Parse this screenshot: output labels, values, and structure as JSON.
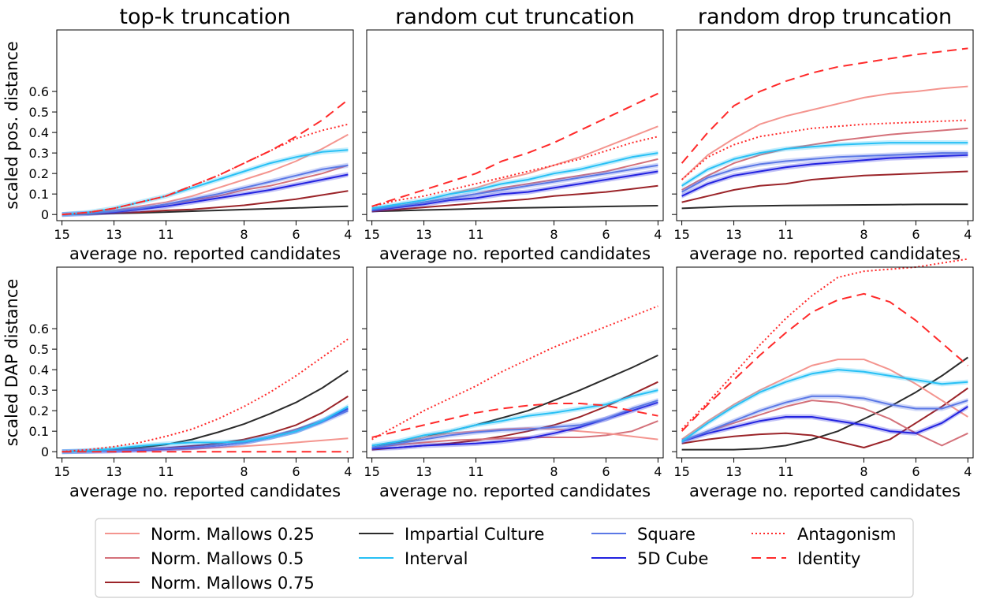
{
  "chart_data": {
    "type": "line",
    "x_ticks": [
      15,
      13,
      11,
      8,
      6,
      4
    ],
    "y_ticks": [
      0,
      0.1,
      0.2,
      0.3,
      0.4,
      0.5,
      0.6
    ],
    "x_range": [
      15.2,
      3.8
    ],
    "xlabel": "average no. reported candidates",
    "series_styles": [
      {
        "key": "m025",
        "name": "Norm. Mallows 0.25",
        "color": "#f4958f",
        "dash": "",
        "band": false
      },
      {
        "key": "m05",
        "name": "Norm. Mallows 0.5",
        "color": "#d4717a",
        "dash": "",
        "band": false
      },
      {
        "key": "m075",
        "name": "Norm. Mallows 0.75",
        "color": "#9b2429",
        "dash": "",
        "band": false
      },
      {
        "key": "ic",
        "name": "Impartial Culture",
        "color": "#2b2b2b",
        "dash": "",
        "band": false
      },
      {
        "key": "int",
        "name": "Interval",
        "color": "#27c0f5",
        "dash": "",
        "band": true
      },
      {
        "key": "sq",
        "name": "Square",
        "color": "#5b78e6",
        "dash": "",
        "band": true
      },
      {
        "key": "cube",
        "name": "5D Cube",
        "color": "#2222e0",
        "dash": "",
        "band": true
      },
      {
        "key": "ant",
        "name": "Antagonism",
        "color": "#ff2a2a",
        "dash": "2,3",
        "band": false
      },
      {
        "key": "id",
        "name": "Identity",
        "color": "#ff2a2a",
        "dash": "12,7",
        "band": false
      }
    ],
    "legend_order": [
      "m025",
      "m05",
      "m075",
      "ic",
      "int",
      "sq",
      "cube",
      "ant",
      "id"
    ],
    "panels": [
      {
        "title": "top-k truncation",
        "ylabel": "scaled pos. distance",
        "ylim": [
          -0.03,
          0.9
        ],
        "x": [
          15,
          14,
          13,
          12,
          11,
          10,
          9,
          8,
          7,
          6,
          5,
          4
        ],
        "series": {
          "m025": [
            0,
            0.005,
            0.02,
            0.04,
            0.06,
            0.09,
            0.13,
            0.17,
            0.21,
            0.26,
            0.32,
            0.39
          ],
          "m05": [
            0,
            0.005,
            0.015,
            0.03,
            0.05,
            0.07,
            0.09,
            0.12,
            0.14,
            0.17,
            0.2,
            0.24
          ],
          "m075": [
            0,
            0.003,
            0.008,
            0.012,
            0.02,
            0.025,
            0.035,
            0.045,
            0.06,
            0.075,
            0.095,
            0.115
          ],
          "ic": [
            0,
            0.002,
            0.005,
            0.008,
            0.012,
            0.016,
            0.02,
            0.024,
            0.028,
            0.032,
            0.036,
            0.04
          ],
          "int": [
            0,
            0.01,
            0.03,
            0.06,
            0.09,
            0.13,
            0.17,
            0.21,
            0.25,
            0.28,
            0.305,
            0.315
          ],
          "sq": [
            0,
            0.005,
            0.015,
            0.03,
            0.05,
            0.075,
            0.1,
            0.13,
            0.16,
            0.19,
            0.22,
            0.24
          ],
          "cube": [
            0,
            0.005,
            0.012,
            0.025,
            0.04,
            0.06,
            0.08,
            0.1,
            0.12,
            0.145,
            0.17,
            0.195
          ],
          "ant": [
            0,
            0.01,
            0.03,
            0.06,
            0.09,
            0.14,
            0.19,
            0.25,
            0.31,
            0.37,
            0.41,
            0.44
          ],
          "id": [
            0,
            0.01,
            0.03,
            0.06,
            0.09,
            0.14,
            0.19,
            0.25,
            0.31,
            0.38,
            0.46,
            0.56
          ]
        }
      },
      {
        "title": "random cut truncation",
        "ylabel": "",
        "ylim": [
          -0.03,
          0.9
        ],
        "x": [
          15,
          14,
          13,
          12,
          11,
          10,
          9,
          8,
          7,
          6,
          5,
          4
        ],
        "series": {
          "m025": [
            0.03,
            0.05,
            0.07,
            0.1,
            0.13,
            0.17,
            0.2,
            0.24,
            0.28,
            0.33,
            0.38,
            0.43
          ],
          "m05": [
            0.02,
            0.04,
            0.06,
            0.08,
            0.1,
            0.13,
            0.15,
            0.17,
            0.19,
            0.21,
            0.24,
            0.27
          ],
          "m075": [
            0.015,
            0.025,
            0.035,
            0.045,
            0.055,
            0.065,
            0.075,
            0.09,
            0.1,
            0.11,
            0.125,
            0.14
          ],
          "ic": [
            0.015,
            0.018,
            0.022,
            0.025,
            0.028,
            0.031,
            0.033,
            0.035,
            0.037,
            0.039,
            0.041,
            0.043
          ],
          "int": [
            0.03,
            0.05,
            0.07,
            0.1,
            0.12,
            0.15,
            0.17,
            0.2,
            0.22,
            0.25,
            0.28,
            0.3
          ],
          "sq": [
            0.025,
            0.04,
            0.06,
            0.08,
            0.1,
            0.12,
            0.14,
            0.16,
            0.18,
            0.2,
            0.22,
            0.24
          ],
          "cube": [
            0.02,
            0.035,
            0.05,
            0.07,
            0.08,
            0.1,
            0.11,
            0.13,
            0.15,
            0.17,
            0.19,
            0.21
          ],
          "ant": [
            0.04,
            0.07,
            0.09,
            0.12,
            0.15,
            0.18,
            0.21,
            0.24,
            0.27,
            0.31,
            0.35,
            0.38
          ],
          "id": [
            0.04,
            0.08,
            0.12,
            0.16,
            0.2,
            0.26,
            0.3,
            0.35,
            0.41,
            0.47,
            0.53,
            0.59
          ]
        }
      },
      {
        "title": "random drop truncation",
        "ylabel": "",
        "ylim": [
          -0.03,
          0.9
        ],
        "x": [
          15,
          14,
          13,
          12,
          11,
          10,
          9,
          8,
          7,
          6,
          5,
          4
        ],
        "series": {
          "m025": [
            0.17,
            0.29,
            0.37,
            0.44,
            0.48,
            0.51,
            0.54,
            0.57,
            0.59,
            0.6,
            0.615,
            0.625
          ],
          "m05": [
            0.12,
            0.19,
            0.25,
            0.29,
            0.32,
            0.34,
            0.36,
            0.375,
            0.39,
            0.4,
            0.41,
            0.42
          ],
          "m075": [
            0.06,
            0.09,
            0.12,
            0.14,
            0.15,
            0.17,
            0.18,
            0.19,
            0.195,
            0.2,
            0.205,
            0.21
          ],
          "ic": [
            0.03,
            0.035,
            0.04,
            0.042,
            0.044,
            0.045,
            0.046,
            0.047,
            0.048,
            0.049,
            0.05,
            0.05
          ],
          "int": [
            0.14,
            0.22,
            0.27,
            0.3,
            0.32,
            0.33,
            0.34,
            0.345,
            0.35,
            0.35,
            0.35,
            0.35
          ],
          "sq": [
            0.11,
            0.18,
            0.22,
            0.245,
            0.26,
            0.27,
            0.28,
            0.285,
            0.29,
            0.295,
            0.3,
            0.3
          ],
          "cube": [
            0.09,
            0.15,
            0.19,
            0.21,
            0.23,
            0.245,
            0.255,
            0.265,
            0.275,
            0.28,
            0.285,
            0.29
          ],
          "ant": [
            0.17,
            0.28,
            0.34,
            0.38,
            0.4,
            0.42,
            0.43,
            0.44,
            0.445,
            0.45,
            0.455,
            0.46
          ],
          "id": [
            0.25,
            0.4,
            0.53,
            0.6,
            0.65,
            0.69,
            0.72,
            0.74,
            0.76,
            0.78,
            0.795,
            0.81
          ]
        }
      },
      {
        "title": "",
        "ylabel": "scaled DAP distance",
        "ylim": [
          -0.03,
          0.9
        ],
        "x": [
          15,
          14,
          13,
          12,
          11,
          10,
          9,
          8,
          7,
          6,
          5,
          4
        ],
        "series": {
          "m025": [
            0,
            0.002,
            0.004,
            0.007,
            0.01,
            0.014,
            0.02,
            0.027,
            0.035,
            0.045,
            0.055,
            0.065
          ],
          "m05": [
            0,
            0.002,
            0.005,
            0.01,
            0.015,
            0.022,
            0.03,
            0.045,
            0.07,
            0.11,
            0.15,
            0.2
          ],
          "m075": [
            0,
            0.003,
            0.007,
            0.012,
            0.018,
            0.028,
            0.04,
            0.06,
            0.09,
            0.13,
            0.19,
            0.27
          ],
          "ic": [
            0,
            0.004,
            0.01,
            0.02,
            0.035,
            0.06,
            0.095,
            0.135,
            0.185,
            0.24,
            0.31,
            0.395
          ],
          "int": [
            0,
            0.005,
            0.015,
            0.028,
            0.038,
            0.045,
            0.045,
            0.05,
            0.07,
            0.1,
            0.15,
            0.22
          ],
          "sq": [
            0,
            0.002,
            0.005,
            0.01,
            0.015,
            0.022,
            0.03,
            0.045,
            0.07,
            0.1,
            0.145,
            0.2
          ],
          "cube": [
            0,
            0.002,
            0.004,
            0.008,
            0.013,
            0.02,
            0.03,
            0.045,
            0.07,
            0.1,
            0.15,
            0.21
          ],
          "ant": [
            0,
            0.01,
            0.025,
            0.045,
            0.075,
            0.11,
            0.16,
            0.22,
            0.29,
            0.37,
            0.46,
            0.55
          ],
          "id": [
            0,
            0,
            0,
            0,
            0,
            0,
            0,
            0,
            0,
            0,
            0,
            0
          ]
        }
      },
      {
        "title": "",
        "ylabel": "",
        "ylim": [
          -0.03,
          0.9
        ],
        "x": [
          15,
          14,
          13,
          12,
          11,
          10,
          9,
          8,
          7,
          6,
          5,
          4
        ],
        "series": {
          "m025": [
            0.03,
            0.05,
            0.07,
            0.09,
            0.1,
            0.11,
            0.115,
            0.11,
            0.1,
            0.09,
            0.075,
            0.06
          ],
          "m05": [
            0.02,
            0.035,
            0.045,
            0.055,
            0.06,
            0.065,
            0.07,
            0.07,
            0.07,
            0.08,
            0.1,
            0.15
          ],
          "m075": [
            0.01,
            0.02,
            0.03,
            0.04,
            0.055,
            0.075,
            0.1,
            0.13,
            0.17,
            0.22,
            0.28,
            0.34
          ],
          "ic": [
            0.02,
            0.045,
            0.07,
            0.1,
            0.13,
            0.165,
            0.2,
            0.25,
            0.3,
            0.355,
            0.41,
            0.47
          ],
          "int": [
            0.03,
            0.05,
            0.08,
            0.1,
            0.13,
            0.15,
            0.175,
            0.19,
            0.21,
            0.23,
            0.27,
            0.3
          ],
          "sq": [
            0.02,
            0.04,
            0.06,
            0.08,
            0.095,
            0.105,
            0.11,
            0.12,
            0.13,
            0.16,
            0.21,
            0.25
          ],
          "cube": [
            0.015,
            0.02,
            0.03,
            0.035,
            0.04,
            0.05,
            0.065,
            0.09,
            0.12,
            0.16,
            0.2,
            0.24
          ],
          "ant": [
            0.06,
            0.13,
            0.2,
            0.26,
            0.32,
            0.39,
            0.45,
            0.51,
            0.56,
            0.61,
            0.66,
            0.71
          ],
          "id": [
            0.07,
            0.1,
            0.13,
            0.16,
            0.19,
            0.21,
            0.225,
            0.235,
            0.235,
            0.225,
            0.2,
            0.175
          ]
        }
      },
      {
        "title": "",
        "ylabel": "",
        "ylim": [
          -0.03,
          0.9
        ],
        "x": [
          15,
          14,
          13,
          12,
          11,
          10,
          9,
          8,
          7,
          6,
          5,
          4
        ],
        "series": {
          "m025": [
            0.06,
            0.15,
            0.23,
            0.3,
            0.36,
            0.42,
            0.45,
            0.45,
            0.4,
            0.33,
            0.25,
            0.17
          ],
          "m05": [
            0.05,
            0.1,
            0.14,
            0.18,
            0.22,
            0.25,
            0.24,
            0.21,
            0.16,
            0.09,
            0.03,
            0.09
          ],
          "m075": [
            0.04,
            0.06,
            0.075,
            0.085,
            0.09,
            0.08,
            0.05,
            0.02,
            0.06,
            0.14,
            0.22,
            0.31
          ],
          "ic": [
            0.01,
            0.01,
            0.01,
            0.015,
            0.03,
            0.06,
            0.1,
            0.16,
            0.22,
            0.29,
            0.37,
            0.46
          ],
          "int": [
            0.05,
            0.14,
            0.22,
            0.29,
            0.34,
            0.38,
            0.4,
            0.39,
            0.37,
            0.35,
            0.33,
            0.34
          ],
          "sq": [
            0.05,
            0.1,
            0.15,
            0.2,
            0.24,
            0.27,
            0.27,
            0.26,
            0.23,
            0.21,
            0.21,
            0.25
          ],
          "cube": [
            0.05,
            0.09,
            0.12,
            0.15,
            0.17,
            0.17,
            0.15,
            0.13,
            0.1,
            0.09,
            0.14,
            0.22
          ],
          "ant": [
            0.11,
            0.24,
            0.38,
            0.52,
            0.65,
            0.76,
            0.85,
            0.88,
            0.89,
            0.9,
            0.92,
            0.94
          ],
          "id": [
            0.1,
            0.23,
            0.35,
            0.47,
            0.58,
            0.68,
            0.74,
            0.77,
            0.73,
            0.64,
            0.53,
            0.42
          ]
        }
      }
    ]
  }
}
